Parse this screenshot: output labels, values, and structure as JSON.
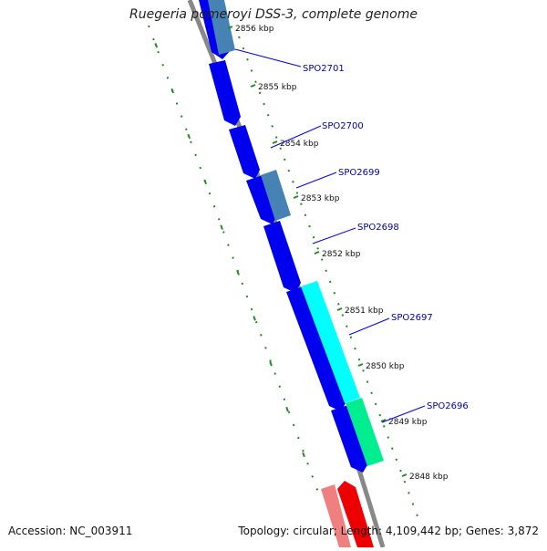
{
  "title": "Ruegeria pomeroyi DSS-3, complete genome",
  "footer": {
    "accession": "Accession: NC_003911",
    "summary": "Topology: circular; Length: 4,109,442 bp; Genes: 3,872"
  },
  "colors": {
    "backbone": "#888888",
    "cds_reverse": "#0000ee",
    "cds_forward": "#ee0000",
    "gene_steel": "#4682b4",
    "gene_cyan": "#00ffff",
    "gene_spring": "#00ee90",
    "tick": "#228b22",
    "label": "#0000aa"
  },
  "scale_ticks": [
    {
      "label": "2856 kbp",
      "position_kbp": 2856
    },
    {
      "label": "2855 kbp",
      "position_kbp": 2855
    },
    {
      "label": "2854 kbp",
      "position_kbp": 2854
    },
    {
      "label": "2853 kbp",
      "position_kbp": 2853
    },
    {
      "label": "2852 kbp",
      "position_kbp": 2852
    },
    {
      "label": "2851 kbp",
      "position_kbp": 2851
    },
    {
      "label": "2850 kbp",
      "position_kbp": 2850
    },
    {
      "label": "2849 kbp",
      "position_kbp": 2849
    },
    {
      "label": "2848 kbp",
      "position_kbp": 2848
    }
  ],
  "gene_labels": [
    {
      "label": "SPO2701"
    },
    {
      "label": "SPO2700"
    },
    {
      "label": "SPO2699"
    },
    {
      "label": "SPO2698"
    },
    {
      "label": "SPO2697"
    },
    {
      "label": "SPO2696"
    }
  ]
}
